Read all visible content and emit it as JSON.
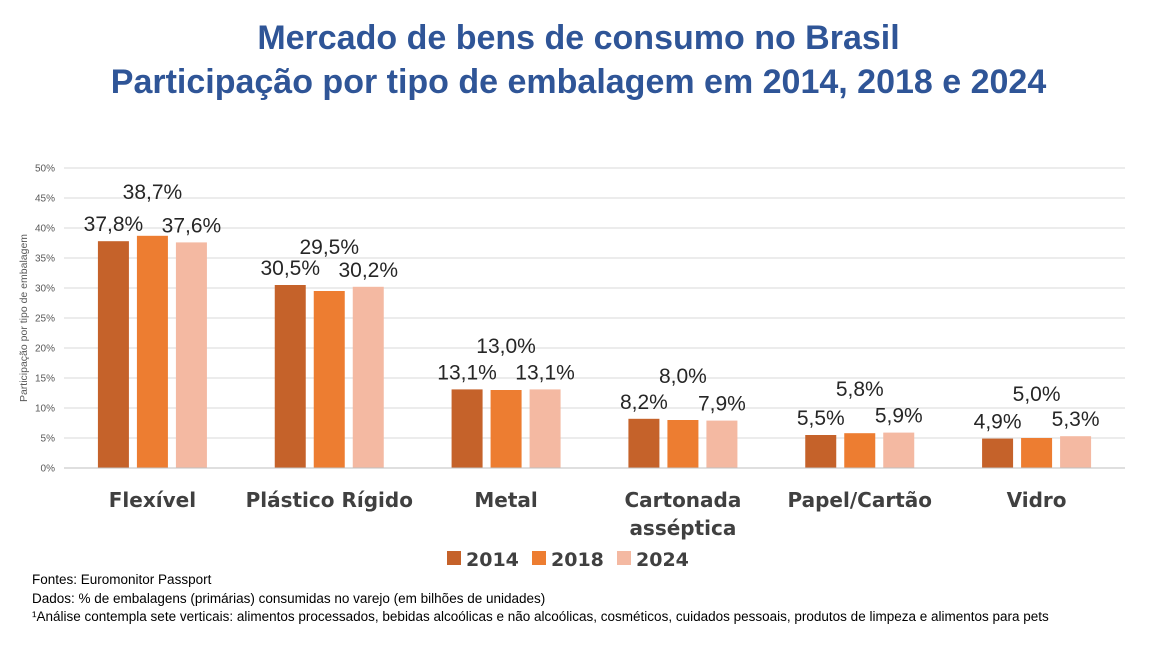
{
  "title_lines": [
    "Mercado de bens de consumo no Brasil",
    "Participação por tipo de embalagem em 2014, 2018 e 2024"
  ],
  "colors": {
    "title": "#2F5597",
    "s2014": "#C5622A",
    "s2018": "#ED7D31",
    "s2024": "#F4B9A2"
  },
  "chart_data": {
    "type": "bar",
    "categories": [
      [
        "Flexível"
      ],
      [
        "Plástico Rígido"
      ],
      [
        "Metal"
      ],
      [
        "Cartonada",
        "asséptica"
      ],
      [
        "Papel/Cartão"
      ],
      [
        "Vidro"
      ]
    ],
    "series": [
      {
        "name": "2014",
        "values": [
          37.8,
          30.5,
          13.1,
          8.2,
          5.5,
          4.9
        ],
        "labels": [
          "37,8%",
          "30,5%",
          "13,1%",
          "8,2%",
          "5,5%",
          "4,9%"
        ]
      },
      {
        "name": "2018",
        "values": [
          38.7,
          29.5,
          13.0,
          8.0,
          5.8,
          5.0
        ],
        "labels": [
          "38,7%",
          "29,5%",
          "13,0%",
          "8,0%",
          "5,8%",
          "5,0%"
        ]
      },
      {
        "name": "2024",
        "values": [
          37.6,
          30.2,
          13.1,
          7.9,
          5.9,
          5.3
        ],
        "labels": [
          "37,6%",
          "30,2%",
          "13,1%",
          "7,9%",
          "5,9%",
          "5,3%"
        ]
      }
    ],
    "ylabel": "Participação por tipo de embalagem",
    "ylim": [
      0,
      50
    ],
    "yticks": [
      "0%",
      "5%",
      "10%",
      "15%",
      "20%",
      "25%",
      "30%",
      "35%",
      "40%",
      "45%",
      "50%"
    ],
    "grid": true,
    "legend": "bottom"
  },
  "footnotes": [
    "Fontes: Euromonitor Passport",
    "Dados: % de embalagens (primárias) consumidas no varejo (em bilhões de unidades)",
    "¹Análise contempla sete verticais: alimentos processados, bebidas alcoólicas e não alcoólicas, cosméticos, cuidados pessoais, produtos de limpeza e alimentos para pets"
  ]
}
